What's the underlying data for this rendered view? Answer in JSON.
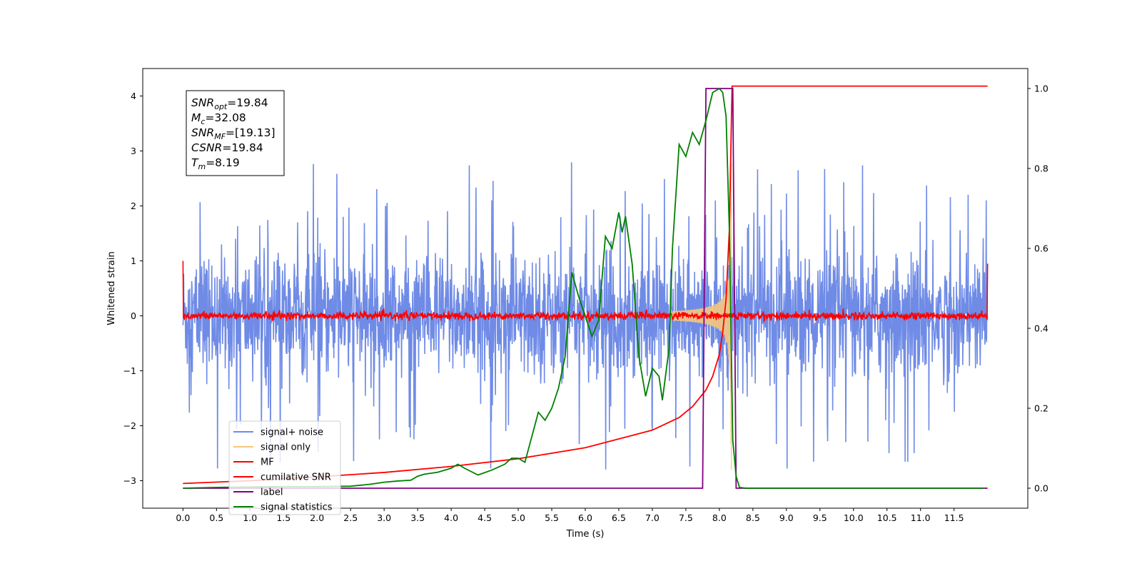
{
  "chart_data": {
    "type": "line",
    "xlabel": "Time (s)",
    "ylabel": "Whitened strain",
    "xlim": [
      -0.6,
      12.6
    ],
    "ylim": [
      -3.5,
      4.5
    ],
    "y2lim": [
      -0.05,
      1.05
    ],
    "x_ticks": [
      0.0,
      0.5,
      1.0,
      1.5,
      2.0,
      2.5,
      3.0,
      3.5,
      4.0,
      4.5,
      5.0,
      5.5,
      6.0,
      6.5,
      7.0,
      7.5,
      8.0,
      8.5,
      9.0,
      9.5,
      10.0,
      10.5,
      11.0,
      11.5
    ],
    "x_tick_labels": [
      "0.0",
      "0.5",
      "1.0",
      "1.5",
      "2.0",
      "2.5",
      "3.0",
      "3.5",
      "4.0",
      "4.5",
      "5.0",
      "5.5",
      "6.0",
      "6.5",
      "7.0",
      "7.5",
      "8.0",
      "8.5",
      "9.0",
      "9.5",
      "10.0",
      "10.5",
      "11.0",
      "11.5"
    ],
    "y_ticks": [
      -3,
      -2,
      -1,
      0,
      1,
      2,
      3,
      4
    ],
    "y_tick_labels": [
      "−3",
      "−2",
      "−1",
      "0",
      "1",
      "2",
      "3",
      "4"
    ],
    "y2_ticks": [
      0.0,
      0.2,
      0.4,
      0.6,
      0.8,
      1.0
    ],
    "y2_tick_labels": [
      "0.0",
      "0.2",
      "0.4",
      "0.6",
      "0.8",
      "1.0"
    ],
    "grid": false,
    "legend_position": "lower-left",
    "series": [
      {
        "name": "signal+ noise",
        "color": "#6f8be6",
        "axis": "left",
        "kind": "noise",
        "x_range": [
          0.0,
          12.0
        ],
        "amplitude_typical": 1.3,
        "amplitude_peak": 2.8
      },
      {
        "name": "signal only",
        "color": "#f5c77e",
        "axis": "left",
        "kind": "chirp",
        "x_range": [
          7.3,
          8.2
        ],
        "peak_x": 8.18,
        "peak_amplitude": 2.9
      },
      {
        "name": "MF",
        "color": "#ff0000",
        "axis": "left",
        "kind": "mf",
        "x_range": [
          0.0,
          12.0
        ],
        "start_value": 1.0,
        "end_value": 0.95,
        "noise_amplitude": 0.07
      },
      {
        "name": "cumilative SNR",
        "color": "#ff0000",
        "axis": "left",
        "x": [
          0.0,
          1.0,
          2.0,
          3.0,
          4.0,
          5.0,
          6.0,
          7.0,
          7.4,
          7.6,
          7.8,
          7.9,
          8.0,
          8.05,
          8.1,
          8.15,
          8.18,
          8.19,
          12.0
        ],
        "y": [
          -3.05,
          -3.0,
          -2.93,
          -2.85,
          -2.74,
          -2.6,
          -2.4,
          -2.08,
          -1.85,
          -1.65,
          -1.35,
          -1.1,
          -0.7,
          -0.3,
          0.3,
          1.6,
          3.6,
          4.18,
          4.18
        ]
      },
      {
        "name": "label",
        "color": "#800080",
        "axis": "right",
        "x": [
          0.0,
          7.75,
          7.8,
          8.2,
          8.25,
          12.0
        ],
        "y": [
          0.0,
          0.0,
          1.0,
          1.0,
          0.0,
          0.0
        ]
      },
      {
        "name": "signal statistics",
        "color": "#008000",
        "axis": "right",
        "x": [
          0.0,
          0.5,
          1.0,
          1.5,
          2.0,
          2.5,
          2.8,
          3.0,
          3.2,
          3.4,
          3.5,
          3.6,
          3.8,
          4.0,
          4.1,
          4.2,
          4.4,
          4.6,
          4.8,
          4.9,
          5.0,
          5.1,
          5.3,
          5.4,
          5.5,
          5.6,
          5.7,
          5.8,
          5.9,
          6.0,
          6.1,
          6.2,
          6.3,
          6.4,
          6.5,
          6.55,
          6.6,
          6.7,
          6.8,
          6.9,
          7.0,
          7.1,
          7.15,
          7.25,
          7.3,
          7.4,
          7.5,
          7.6,
          7.7,
          7.8,
          7.9,
          8.0,
          8.05,
          8.1,
          8.15,
          8.2,
          8.25,
          8.3,
          8.4,
          9.0,
          10.0,
          11.0,
          11.95
        ],
        "y": [
          0.0,
          0.002,
          0.003,
          0.004,
          0.004,
          0.005,
          0.01,
          0.015,
          0.018,
          0.02,
          0.03,
          0.035,
          0.04,
          0.05,
          0.06,
          0.05,
          0.033,
          0.045,
          0.06,
          0.075,
          0.075,
          0.065,
          0.19,
          0.17,
          0.2,
          0.25,
          0.33,
          0.54,
          0.48,
          0.43,
          0.38,
          0.42,
          0.63,
          0.6,
          0.69,
          0.64,
          0.68,
          0.56,
          0.33,
          0.23,
          0.3,
          0.28,
          0.22,
          0.35,
          0.6,
          0.86,
          0.83,
          0.89,
          0.86,
          0.92,
          0.99,
          1.0,
          0.99,
          0.93,
          0.64,
          0.12,
          0.03,
          0.002,
          0.0,
          0.0,
          0.0,
          0.0,
          0.0
        ]
      }
    ]
  },
  "info_box": {
    "lines": [
      {
        "base": "SNR",
        "sub": "opt",
        "rest": "=19.84"
      },
      {
        "base": "M",
        "sub": "c",
        "rest": "=32.08"
      },
      {
        "base": "SNR",
        "sub": "MF",
        "rest": "=[19.13]"
      },
      {
        "base": "CSNR",
        "sub": "",
        "rest": "=19.84"
      },
      {
        "base": "T",
        "sub": "m",
        "rest": "=8.19"
      }
    ]
  }
}
